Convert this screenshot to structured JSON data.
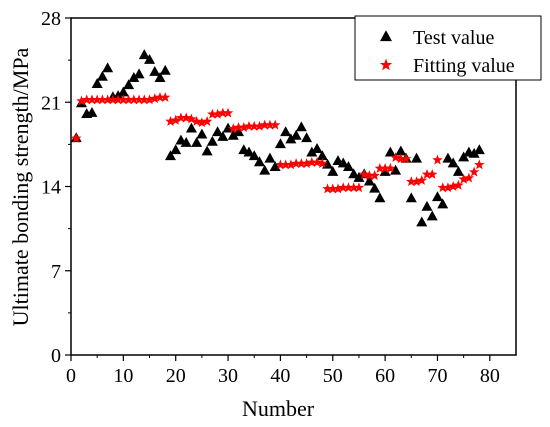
{
  "chart_data": {
    "type": "scatter",
    "xlabel": "Number",
    "ylabel": "Ultimate bonding strength/MPa",
    "xlim": [
      0,
      85
    ],
    "ylim": [
      0,
      28
    ],
    "xticks": [
      0,
      10,
      20,
      30,
      40,
      50,
      60,
      70,
      80
    ],
    "yticks": [
      0,
      7,
      14,
      21,
      28
    ],
    "grid": false,
    "legend_position": "top-right",
    "series": [
      {
        "name": "Test value",
        "marker": "triangle",
        "color": "#000000",
        "x": [
          1,
          2,
          3,
          4,
          5,
          6,
          7,
          8,
          9,
          10,
          11,
          12,
          13,
          14,
          15,
          16,
          17,
          18,
          19,
          20,
          21,
          22,
          23,
          24,
          25,
          26,
          27,
          28,
          29,
          30,
          31,
          32,
          33,
          34,
          35,
          36,
          37,
          38,
          39,
          40,
          41,
          42,
          43,
          44,
          45,
          46,
          47,
          48,
          49,
          50,
          51,
          52,
          53,
          54,
          55,
          56,
          57,
          58,
          59,
          60,
          61,
          62,
          63,
          64,
          65,
          66,
          67,
          68,
          69,
          70,
          71,
          72,
          73,
          74,
          75,
          76,
          77,
          78
        ],
        "values": [
          18.0,
          20.9,
          20.0,
          20.1,
          22.5,
          23.1,
          23.8,
          21.4,
          21.5,
          21.8,
          22.4,
          23.0,
          23.3,
          24.9,
          24.5,
          23.5,
          23.0,
          23.6,
          16.5,
          17.0,
          17.8,
          17.6,
          18.8,
          17.6,
          18.3,
          16.9,
          17.7,
          18.5,
          18.1,
          18.8,
          18.2,
          18.5,
          17.0,
          16.8,
          16.5,
          16.0,
          15.3,
          16.3,
          15.6,
          17.5,
          18.5,
          17.9,
          18.2,
          18.9,
          18.0,
          16.8,
          17.1,
          16.5,
          15.8,
          15.2,
          16.1,
          15.9,
          15.6,
          15.0,
          14.7,
          15.0,
          14.4,
          13.8,
          13.0,
          15.2,
          16.8,
          15.3,
          16.9,
          16.3,
          13.0,
          16.3,
          11.0,
          12.3,
          11.5,
          13.1,
          12.5,
          16.3,
          15.9,
          15.2,
          16.4,
          16.8,
          16.7,
          17.0
        ]
      },
      {
        "name": "Fitting value",
        "marker": "star",
        "color": "#ff0000",
        "x": [
          1,
          2,
          3,
          4,
          5,
          6,
          7,
          8,
          9,
          10,
          11,
          12,
          13,
          14,
          15,
          16,
          17,
          18,
          19,
          20,
          21,
          22,
          23,
          24,
          25,
          26,
          27,
          28,
          29,
          30,
          31,
          32,
          33,
          34,
          35,
          36,
          37,
          38,
          39,
          40,
          41,
          42,
          43,
          44,
          45,
          46,
          47,
          48,
          49,
          50,
          51,
          52,
          53,
          54,
          55,
          56,
          57,
          58,
          59,
          60,
          61,
          62,
          63,
          64,
          65,
          66,
          67,
          68,
          69,
          70,
          71,
          72,
          73,
          74,
          75,
          76,
          77,
          78
        ],
        "values": [
          18.0,
          21.1,
          21.2,
          21.2,
          21.2,
          21.2,
          21.2,
          21.2,
          21.2,
          21.2,
          21.2,
          21.2,
          21.2,
          21.2,
          21.2,
          21.3,
          21.4,
          21.4,
          19.4,
          19.5,
          19.7,
          19.7,
          19.6,
          19.4,
          19.3,
          19.4,
          20.0,
          20.0,
          20.1,
          20.1,
          18.8,
          18.9,
          18.9,
          19.0,
          19.0,
          19.0,
          19.1,
          19.1,
          19.1,
          15.8,
          15.8,
          15.8,
          15.9,
          15.9,
          15.9,
          16.0,
          16.0,
          15.9,
          13.8,
          13.8,
          13.8,
          13.9,
          13.9,
          13.9,
          13.9,
          15.0,
          14.9,
          14.9,
          15.5,
          15.5,
          15.5,
          16.4,
          16.3,
          16.3,
          14.4,
          14.4,
          14.5,
          15.0,
          15.0,
          16.2,
          13.9,
          13.9,
          14.0,
          14.1,
          14.6,
          14.7,
          15.2,
          15.8
        ]
      }
    ]
  }
}
